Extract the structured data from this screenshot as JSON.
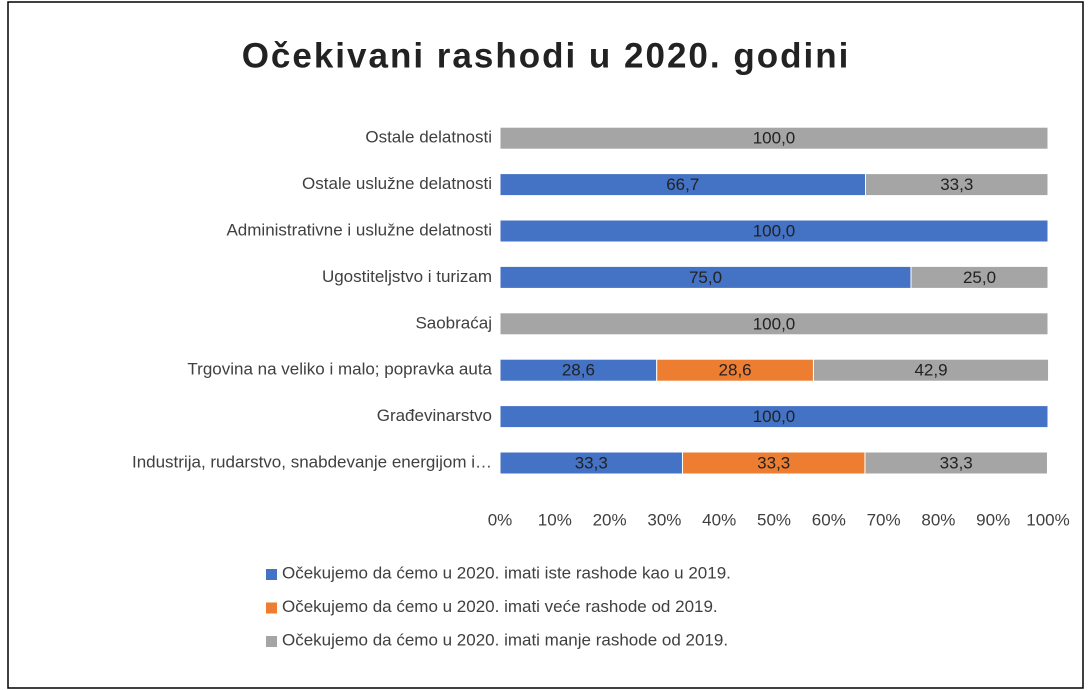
{
  "chart_data": {
    "type": "stacked_bar_horizontal",
    "title": "Očekivani rashodi u 2020. godini",
    "categories": [
      "Ostale delatnosti",
      "Ostale uslužne delatnosti",
      "Administrativne i uslužne delatnosti",
      "Ugostiteljstvo i turizam",
      "Saobraćaj",
      "Trgovina na veliko i malo; popravka auta",
      "Građevinarstvo",
      "Industrija, rudarstvo, snabdevanje energijom i…"
    ],
    "series": [
      {
        "name": "Očekujemo da ćemo u 2020. imati iste rashode kao u 2019.",
        "color": "#4472c4",
        "values": [
          null,
          66.7,
          100,
          75,
          null,
          28.6,
          100,
          33.3
        ],
        "value_labels": [
          null,
          "66,7",
          "100,0",
          "75,0",
          null,
          "28,6",
          "100,0",
          "33,3"
        ]
      },
      {
        "name": "Očekujemo da ćemo u 2020. imati veće rashode od 2019.",
        "color": "#ed7d31",
        "values": [
          null,
          null,
          null,
          null,
          null,
          28.6,
          null,
          33.3
        ],
        "value_labels": [
          null,
          null,
          null,
          null,
          null,
          "28,6",
          null,
          "33,3"
        ]
      },
      {
        "name": "Očekujemo da ćemo u 2020. imati manje rashode od 2019.",
        "color": "#a5a5a5",
        "values": [
          100,
          33.3,
          null,
          25,
          100,
          42.9,
          null,
          33.3
        ],
        "value_labels": [
          "100,0",
          "33,3",
          null,
          "25,0",
          "100,0",
          "42,9",
          null,
          "33,3"
        ]
      }
    ],
    "xlim": [
      0,
      100
    ],
    "xticks": [
      {
        "value": 0,
        "label": "0%"
      },
      {
        "value": 10,
        "label": "10%"
      },
      {
        "value": 20,
        "label": "20%"
      },
      {
        "value": 30,
        "label": "30%"
      },
      {
        "value": 40,
        "label": "40%"
      },
      {
        "value": 50,
        "label": "50%"
      },
      {
        "value": 60,
        "label": "60%"
      },
      {
        "value": 70,
        "label": "70%"
      },
      {
        "value": 80,
        "label": "80%"
      },
      {
        "value": 90,
        "label": "90%"
      },
      {
        "value": 100,
        "label": "100%"
      }
    ],
    "legend": "bottom"
  }
}
